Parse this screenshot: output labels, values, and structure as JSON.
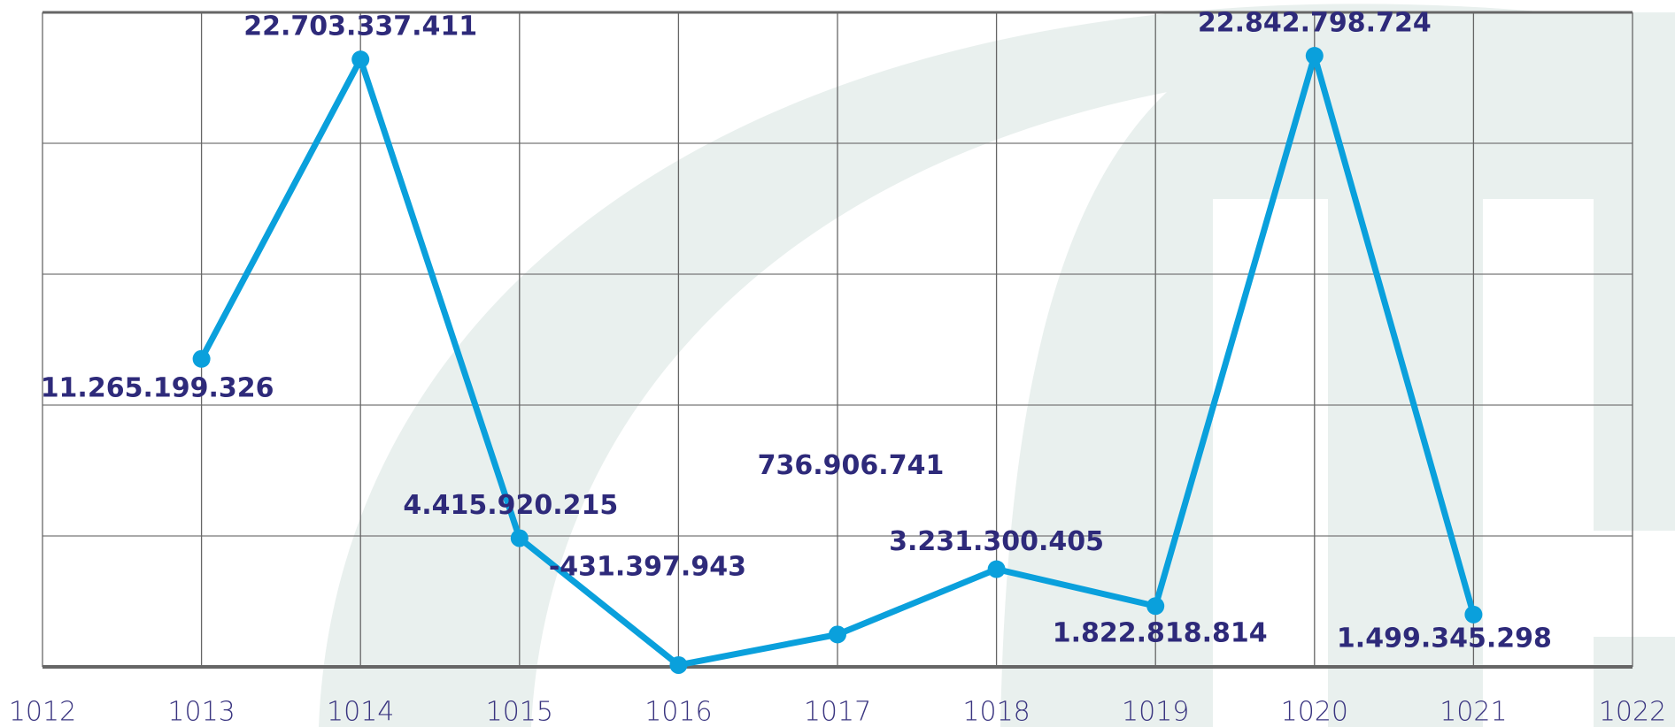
{
  "chart_data": {
    "type": "line",
    "x": [
      1013,
      1014,
      1015,
      1016,
      1017,
      1018,
      1019,
      1020,
      1021
    ],
    "values": [
      11265199326,
      22703337411,
      4415920215,
      -431397943,
      736906741,
      3231300405,
      1822818814,
      22842798724,
      1499345298
    ],
    "value_labels": [
      "11.265.199.326",
      "22.703.337.411",
      "4.415.920.215",
      "-431.397.943",
      "736.906.741",
      "3.231.300.405",
      "1.822.818.814",
      "22.842.798.724",
      "1.499.345.298"
    ],
    "color": "#0aa0dc",
    "xlim": [
      1012,
      1022
    ],
    "xticks": [
      1012,
      1013,
      1014,
      1015,
      1016,
      1017,
      1018,
      1019,
      1020,
      1021,
      1022
    ],
    "ylim": [
      -500000000,
      24500000000
    ],
    "yticks": [
      -500000000,
      4500000000,
      9500000000,
      14500000000,
      19500000000,
      24500000000
    ],
    "grid": true
  }
}
